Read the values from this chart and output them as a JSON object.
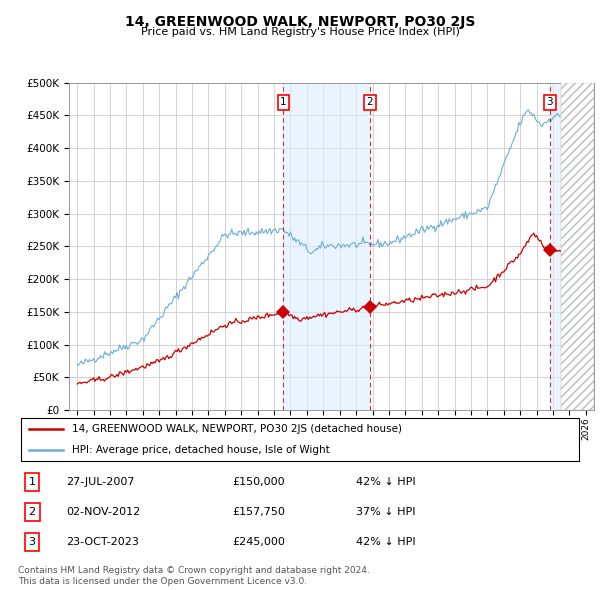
{
  "title": "14, GREENWOOD WALK, NEWPORT, PO30 2JS",
  "subtitle": "Price paid vs. HM Land Registry's House Price Index (HPI)",
  "ylim": [
    0,
    500000
  ],
  "yticks": [
    0,
    50000,
    100000,
    150000,
    200000,
    250000,
    300000,
    350000,
    400000,
    450000,
    500000
  ],
  "ytick_labels": [
    "£0",
    "£50K",
    "£100K",
    "£150K",
    "£200K",
    "£250K",
    "£300K",
    "£350K",
    "£400K",
    "£450K",
    "£500K"
  ],
  "xlim_start": 1994.5,
  "xlim_end": 2026.5,
  "hpi_color": "#6baed6",
  "price_color": "#cc0000",
  "sale_dates_year": [
    2007.57,
    2012.84,
    2023.8
  ],
  "sale_prices": [
    150000,
    157750,
    245000
  ],
  "sale_labels": [
    "1",
    "2",
    "3"
  ],
  "sale_date_strs": [
    "27-JUL-2007",
    "02-NOV-2012",
    "23-OCT-2023"
  ],
  "sale_price_strs": [
    "£150,000",
    "£157,750",
    "£245,000"
  ],
  "sale_hpi_strs": [
    "42% ↓ HPI",
    "37% ↓ HPI",
    "42% ↓ HPI"
  ],
  "legend_label_red": "14, GREENWOOD WALK, NEWPORT, PO30 2JS (detached house)",
  "legend_label_blue": "HPI: Average price, detached house, Isle of Wight",
  "footnote": "Contains HM Land Registry data © Crown copyright and database right 2024.\nThis data is licensed under the Open Government Licence v3.0.",
  "hatch_start": 2024.5,
  "background_color": "#ffffff",
  "grid_color": "#cccccc",
  "shade_color": "#ddeeff",
  "shade_span": [
    2007.57,
    2012.84
  ],
  "shade_span3": [
    2023.8,
    2024.5
  ]
}
